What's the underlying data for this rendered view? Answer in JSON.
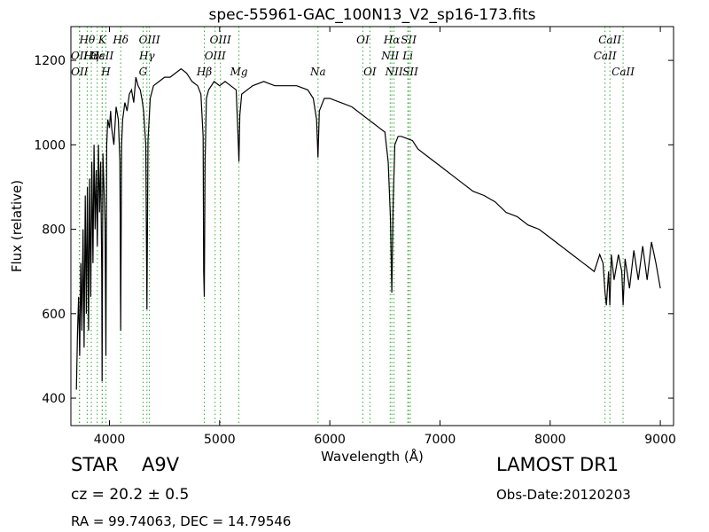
{
  "chart_data": {
    "type": "line",
    "title": "spec-55961-GAC_100N13_V2_sp16-173.fits",
    "xlabel": "Wavelength (Å)",
    "ylabel": "Flux (relative)",
    "xlim": [
      3650,
      9120
    ],
    "ylim": [
      335,
      1280
    ],
    "xticks": [
      4000,
      5000,
      6000,
      7000,
      8000,
      9000
    ],
    "yticks": [
      400,
      600,
      800,
      1000,
      1200
    ],
    "grid": false,
    "colors": {
      "spectrum": "#000000",
      "line_markers": "#33aa33"
    },
    "series": [
      {
        "x": [
          3700,
          3710,
          3720,
          3730,
          3740,
          3750,
          3760,
          3770,
          3780,
          3790,
          3800,
          3810,
          3820,
          3830,
          3840,
          3850,
          3860,
          3870,
          3880,
          3890,
          3900,
          3910,
          3920,
          3930,
          3933,
          3940,
          3950,
          3960,
          3968,
          3975,
          3985,
          4000,
          4010,
          4020,
          4040,
          4060,
          4080,
          4095,
          4102,
          4110,
          4120,
          4140,
          4160,
          4180,
          4200,
          4220,
          4240,
          4260,
          4280,
          4300,
          4310,
          4330,
          4340,
          4350,
          4370,
          4400,
          4450,
          4500,
          4550,
          4600,
          4650,
          4700,
          4750,
          4800,
          4830,
          4850,
          4855,
          4861,
          4868,
          4880,
          4900,
          4950,
          5000,
          5050,
          5100,
          5150,
          5167,
          5175,
          5183,
          5200,
          5300,
          5400,
          5500,
          5600,
          5700,
          5800,
          5850,
          5880,
          5893,
          5905,
          5950,
          6000,
          6100,
          6200,
          6300,
          6350,
          6400,
          6450,
          6500,
          6530,
          6550,
          6563,
          6575,
          6590,
          6620,
          6650,
          6700,
          6750,
          6800,
          6900,
          7000,
          7100,
          7200,
          7300,
          7400,
          7500,
          7600,
          7700,
          7800,
          7900,
          8000,
          8100,
          8200,
          8300,
          8350,
          8400,
          8450,
          8480,
          8498,
          8510,
          8530,
          8542,
          8555,
          8580,
          8620,
          8650,
          8662,
          8680,
          8720,
          8760,
          8800,
          8840,
          8880,
          8920,
          8960,
          9000
        ],
        "y": [
          420,
          560,
          640,
          500,
          720,
          560,
          800,
          520,
          880,
          600,
          900,
          560,
          920,
          640,
          960,
          720,
          1000,
          800,
          940,
          760,
          1000,
          840,
          960,
          700,
          440,
          980,
          900,
          820,
          500,
          1000,
          1060,
          1040,
          1080,
          1040,
          1000,
          1090,
          1060,
          960,
          560,
          1000,
          1060,
          1100,
          1080,
          1120,
          1130,
          1100,
          1160,
          1140,
          1130,
          1100,
          1080,
          1000,
          610,
          1010,
          1110,
          1140,
          1150,
          1160,
          1160,
          1170,
          1180,
          1170,
          1150,
          1140,
          1120,
          1020,
          700,
          640,
          960,
          1110,
          1130,
          1150,
          1140,
          1150,
          1140,
          1130,
          1020,
          960,
          1070,
          1120,
          1140,
          1150,
          1140,
          1140,
          1140,
          1130,
          1110,
          1060,
          970,
          1080,
          1110,
          1110,
          1100,
          1090,
          1070,
          1060,
          1050,
          1040,
          1030,
          960,
          830,
          650,
          860,
          1000,
          1020,
          1020,
          1015,
          1010,
          990,
          970,
          950,
          930,
          910,
          890,
          880,
          865,
          840,
          830,
          810,
          800,
          780,
          760,
          740,
          720,
          710,
          700,
          740,
          720,
          650,
          620,
          700,
          620,
          740,
          680,
          740,
          700,
          620,
          730,
          660,
          750,
          680,
          760,
          680,
          770,
          720,
          660
        ]
      }
    ],
    "line_markers": [
      {
        "label": "Hθ",
        "wavelength": 3798,
        "row": 1
      },
      {
        "label": "K",
        "wavelength": 3934,
        "row": 1
      },
      {
        "label": "Hδ",
        "wavelength": 4102,
        "row": 1
      },
      {
        "label": "OIII",
        "wavelength": 4363,
        "row": 1
      },
      {
        "label": "OIII",
        "wavelength": 5007,
        "row": 1
      },
      {
        "label": "OI",
        "wavelength": 6300,
        "row": 1
      },
      {
        "label": "Hα",
        "wavelength": 6563,
        "row": 1
      },
      {
        "label": "SII",
        "wavelength": 6716,
        "row": 1
      },
      {
        "label": "CaII",
        "wavelength": 8542,
        "row": 1
      },
      {
        "label": "OII",
        "wavelength": 3727,
        "row": 2
      },
      {
        "label": "Hε",
        "wavelength": 3889,
        "row": 2
      },
      {
        "label": "CaII",
        "wavelength": 3934,
        "row": 2
      },
      {
        "label": "Hγ",
        "wavelength": 4340,
        "row": 2
      },
      {
        "label": "CaII",
        "wavelength": 8498,
        "row": 2
      },
      {
        "label": "OIII",
        "wavelength": 4959,
        "row": 2
      },
      {
        "label": "NII",
        "wavelength": 6548,
        "row": 2
      },
      {
        "label": "Li",
        "wavelength": 6708,
        "row": 2
      },
      {
        "label": "Hη",
        "wavelength": 3835,
        "row": 2
      },
      {
        "label": "OII",
        "wavelength": 3729,
        "row": 3
      },
      {
        "label": "H",
        "wavelength": 3968,
        "row": 3
      },
      {
        "label": "G",
        "wavelength": 4305,
        "row": 3
      },
      {
        "label": "Hβ",
        "wavelength": 4861,
        "row": 3
      },
      {
        "label": "Mg",
        "wavelength": 5175,
        "row": 3
      },
      {
        "label": "Na",
        "wavelength": 5893,
        "row": 3
      },
      {
        "label": "OI",
        "wavelength": 6364,
        "row": 3
      },
      {
        "label": "NII",
        "wavelength": 6583,
        "row": 3
      },
      {
        "label": "SII",
        "wavelength": 6731,
        "row": 3
      },
      {
        "label": "CaII",
        "wavelength": 8662,
        "row": 3
      }
    ]
  },
  "info": {
    "class": "STAR",
    "subclass": "A9V",
    "redshift": "cz = 20.2  ± 0.5",
    "survey": "LAMOST DR1",
    "obs_date": "Obs-Date:20120203",
    "radec": "RA = 99.74063, DEC = 14.79546"
  }
}
